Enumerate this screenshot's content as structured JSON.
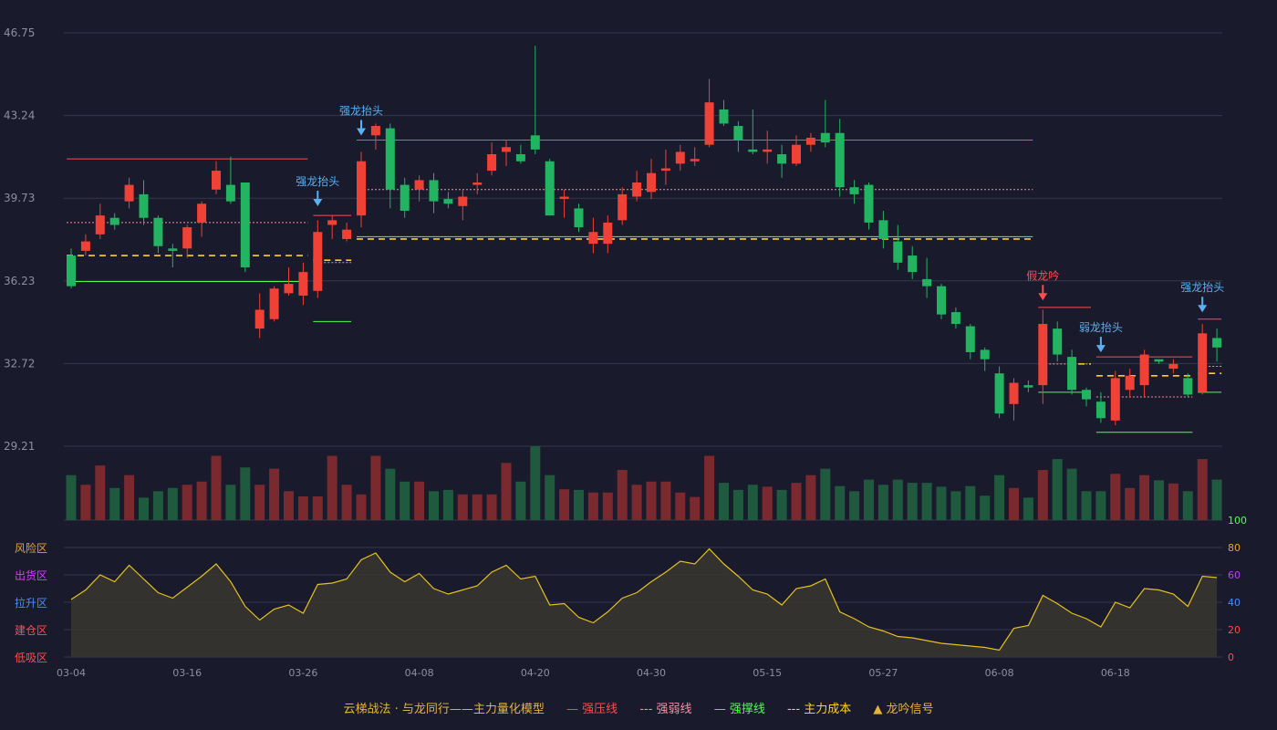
{
  "chart_data": {
    "type": "candlestick",
    "price_ticks": [
      "46.75",
      "43.24",
      "39.73",
      "36.23",
      "32.72",
      "29.21"
    ],
    "ylim": [
      29.21,
      46.75
    ],
    "x_tick_labels": [
      "03-04",
      "03-16",
      "03-26",
      "04-08",
      "04-20",
      "04-30",
      "05-15",
      "05-27",
      "06-08",
      "06-18"
    ],
    "x_tick_index": [
      0,
      8,
      16,
      24,
      32,
      40,
      48,
      56,
      64,
      72
    ],
    "candles": [
      [
        37.3,
        36.0,
        37.6,
        35.9
      ],
      [
        37.5,
        37.9,
        38.2,
        37.3
      ],
      [
        38.2,
        39.0,
        39.5,
        38.0
      ],
      [
        38.9,
        38.6,
        39.1,
        38.4
      ],
      [
        39.6,
        40.3,
        40.6,
        39.3
      ],
      [
        39.9,
        38.9,
        40.5,
        38.6
      ],
      [
        38.9,
        37.7,
        39.0,
        37.4
      ],
      [
        37.6,
        37.5,
        37.8,
        36.8
      ],
      [
        37.6,
        38.5,
        38.6,
        37.2
      ],
      [
        38.7,
        39.5,
        39.6,
        38.1
      ],
      [
        40.1,
        40.9,
        41.3,
        39.9
      ],
      [
        40.3,
        39.6,
        41.5,
        39.5
      ],
      [
        40.4,
        36.8,
        40.3,
        36.6
      ],
      [
        34.2,
        35.0,
        35.7,
        33.8
      ],
      [
        34.6,
        35.9,
        36.0,
        34.5
      ],
      [
        35.7,
        36.1,
        36.8,
        35.6
      ],
      [
        35.6,
        36.6,
        37.0,
        35.2
      ],
      [
        35.8,
        38.3,
        38.8,
        35.5
      ],
      [
        38.6,
        38.8,
        39.0,
        38.0
      ],
      [
        38.0,
        38.4,
        38.7,
        37.9
      ],
      [
        39.0,
        41.3,
        41.7,
        38.5
      ],
      [
        42.4,
        42.8,
        42.9,
        41.8
      ],
      [
        42.7,
        40.1,
        42.9,
        39.3
      ],
      [
        40.3,
        39.2,
        40.6,
        38.9
      ],
      [
        40.1,
        40.5,
        40.7,
        39.6
      ],
      [
        40.5,
        39.6,
        40.8,
        39.1
      ],
      [
        39.7,
        39.5,
        40.0,
        39.3
      ],
      [
        39.4,
        39.8,
        40.1,
        38.8
      ],
      [
        40.3,
        40.4,
        40.8,
        39.9
      ],
      [
        40.9,
        41.6,
        42.1,
        40.7
      ],
      [
        41.7,
        41.9,
        42.2,
        41.1
      ],
      [
        41.6,
        41.3,
        42.0,
        41.2
      ],
      [
        42.4,
        41.8,
        46.2,
        41.6
      ],
      [
        41.3,
        39.0,
        41.4,
        39.0
      ],
      [
        39.7,
        39.8,
        40.1,
        38.9
      ],
      [
        39.3,
        38.5,
        39.5,
        38.3
      ],
      [
        37.8,
        38.3,
        38.9,
        37.4
      ],
      [
        37.8,
        38.7,
        39.0,
        37.4
      ],
      [
        38.8,
        39.9,
        40.2,
        38.6
      ],
      [
        39.8,
        40.4,
        40.9,
        39.6
      ],
      [
        40.0,
        40.8,
        41.4,
        39.7
      ],
      [
        40.9,
        41.0,
        41.8,
        40.3
      ],
      [
        41.2,
        41.7,
        42.0,
        40.9
      ],
      [
        41.3,
        41.4,
        41.9,
        41.1
      ],
      [
        42.0,
        43.8,
        44.8,
        41.9
      ],
      [
        43.5,
        42.9,
        43.9,
        42.8
      ],
      [
        42.8,
        42.2,
        43.0,
        41.7
      ],
      [
        41.8,
        41.7,
        43.5,
        41.6
      ],
      [
        41.7,
        41.8,
        42.6,
        41.2
      ],
      [
        41.6,
        41.2,
        42.0,
        40.6
      ],
      [
        41.2,
        42.0,
        42.4,
        41.1
      ],
      [
        42.0,
        42.3,
        42.5,
        41.7
      ],
      [
        42.5,
        42.1,
        43.9,
        41.9
      ],
      [
        42.5,
        40.2,
        43.1,
        39.8
      ],
      [
        40.2,
        39.9,
        40.5,
        39.5
      ],
      [
        40.3,
        38.7,
        40.4,
        38.4
      ],
      [
        38.8,
        38.0,
        39.2,
        37.6
      ],
      [
        37.9,
        37.0,
        38.6,
        36.7
      ],
      [
        37.3,
        36.6,
        37.7,
        36.3
      ],
      [
        36.3,
        36.0,
        37.2,
        35.5
      ],
      [
        36.0,
        34.8,
        36.1,
        34.6
      ],
      [
        34.9,
        34.4,
        35.1,
        34.2
      ],
      [
        34.3,
        33.2,
        34.4,
        32.9
      ],
      [
        33.3,
        32.9,
        33.4,
        32.4
      ],
      [
        32.3,
        30.6,
        32.6,
        30.4
      ],
      [
        31.0,
        31.9,
        32.1,
        30.3
      ],
      [
        31.8,
        31.7,
        32.0,
        31.5
      ],
      [
        31.8,
        34.4,
        35.0,
        31.0
      ],
      [
        34.2,
        33.1,
        34.5,
        32.8
      ],
      [
        33.0,
        31.6,
        33.3,
        31.4
      ],
      [
        31.6,
        31.2,
        31.7,
        30.9
      ],
      [
        31.1,
        30.4,
        31.5,
        30.2
      ],
      [
        30.3,
        32.1,
        32.4,
        30.1
      ],
      [
        31.6,
        32.2,
        32.5,
        31.3
      ],
      [
        31.8,
        33.1,
        33.3,
        31.3
      ],
      [
        32.9,
        32.8,
        32.9,
        32.7
      ],
      [
        32.5,
        32.7,
        32.9,
        32.3
      ],
      [
        32.1,
        31.4,
        32.3,
        31.3
      ],
      [
        31.5,
        34.0,
        34.4,
        31.4
      ],
      [
        33.8,
        33.4,
        34.2,
        32.8
      ]
    ],
    "volume": [
      0.7,
      0.55,
      0.85,
      0.5,
      0.7,
      0.35,
      0.45,
      0.5,
      0.55,
      0.6,
      1.0,
      0.55,
      0.82,
      0.55,
      0.8,
      0.45,
      0.37,
      0.37,
      1.0,
      0.55,
      0.4,
      1.0,
      0.8,
      0.6,
      0.6,
      0.45,
      0.47,
      0.4,
      0.4,
      0.4,
      0.89,
      0.6,
      1.15,
      0.7,
      0.48,
      0.47,
      0.43,
      0.43,
      0.78,
      0.55,
      0.6,
      0.6,
      0.43,
      0.36,
      1.0,
      0.58,
      0.47,
      0.55,
      0.52,
      0.47,
      0.58,
      0.7,
      0.8,
      0.53,
      0.45,
      0.63,
      0.55,
      0.63,
      0.58,
      0.58,
      0.52,
      0.45,
      0.53,
      0.38,
      0.7,
      0.5,
      0.35,
      0.78,
      0.95,
      0.8,
      0.45,
      0.45,
      0.72,
      0.5,
      0.7,
      0.62,
      0.57,
      0.45,
      0.95,
      0.63
    ],
    "oscillator": [
      42,
      49,
      60,
      55,
      67,
      57,
      47,
      43,
      51,
      59,
      68,
      55,
      37,
      27,
      35,
      38,
      32,
      53,
      54,
      57,
      71,
      76,
      62,
      55,
      61,
      50,
      46,
      49,
      52,
      62,
      67,
      57,
      59,
      38,
      39,
      29,
      25,
      33,
      43,
      47,
      55,
      62,
      70,
      68,
      79,
      68,
      59,
      49,
      46,
      38,
      50,
      52,
      57,
      33,
      28,
      22,
      19,
      15,
      14,
      12,
      10,
      9,
      8,
      7,
      5,
      21,
      23,
      45,
      39,
      32,
      28,
      22,
      40,
      36,
      50,
      49,
      46,
      37,
      59,
      58
    ],
    "osc_axis_labels": [
      "100",
      "80",
      "60",
      "40",
      "20",
      "0"
    ],
    "osc_zone_labels": [
      "风险区",
      "出货区",
      "拉升区",
      "建仓区",
      "低吸区"
    ],
    "annotations": [
      {
        "text": "强龙抬头",
        "index": 20,
        "price": 42.2,
        "color": "#5ab0f0"
      },
      {
        "text": "强龙抬头",
        "index": 17,
        "price": 39.2,
        "color": "#5ab0f0"
      },
      {
        "text": "假龙吟",
        "index": 67,
        "price": 35.2,
        "color": "#ff4c4c"
      },
      {
        "text": "弱龙抬头",
        "index": 71,
        "price": 33.0,
        "color": "#5ab0f0"
      },
      {
        "text": "强龙抬头",
        "index": 78,
        "price": 34.7,
        "color": "#5ab0f0"
      }
    ],
    "levels": [
      {
        "type": "pressure",
        "from": 0,
        "to": 16,
        "price": 41.4
      },
      {
        "type": "weak",
        "from": 0,
        "to": 16,
        "price": 38.7
      },
      {
        "type": "support",
        "from": 0,
        "to": 16,
        "price": 36.2
      },
      {
        "type": "cost",
        "from": 0,
        "to": 16,
        "price": 37.3
      },
      {
        "type": "pressure",
        "from": 17,
        "to": 19,
        "price": 39.0
      },
      {
        "type": "weak",
        "from": 17,
        "to": 19,
        "price": 37.0
      },
      {
        "type": "support",
        "from": 17,
        "to": 19,
        "price": 34.5
      },
      {
        "type": "cost",
        "from": 17,
        "to": 19,
        "price": 37.1
      },
      {
        "type": "pressure",
        "from": 20,
        "to": 66,
        "price": 42.2
      },
      {
        "type": "weak",
        "from": 20,
        "to": 66,
        "price": 40.1
      },
      {
        "type": "support",
        "from": 20,
        "to": 66,
        "price": 38.1
      },
      {
        "type": "cost",
        "from": 20,
        "to": 66,
        "price": 38.0
      },
      {
        "type": "pressure",
        "from": 67,
        "to": 70,
        "price": 35.1
      },
      {
        "type": "support",
        "from": 67,
        "to": 70,
        "price": 31.5
      },
      {
        "type": "weak",
        "from": 67,
        "to": 70,
        "price": 32.7
      },
      {
        "type": "cost",
        "from": 69,
        "to": 70,
        "price": 32.7
      },
      {
        "type": "pressure",
        "from": 71,
        "to": 77,
        "price": 33.0
      },
      {
        "type": "weak",
        "from": 71,
        "to": 77,
        "price": 31.3
      },
      {
        "type": "support",
        "from": 71,
        "to": 77,
        "price": 29.8
      },
      {
        "type": "cost",
        "from": 71,
        "to": 77,
        "price": 32.2
      },
      {
        "type": "pressure",
        "from": 78,
        "to": 79,
        "price": 34.6
      },
      {
        "type": "weak",
        "from": 78,
        "to": 79,
        "price": 32.6
      },
      {
        "type": "support",
        "from": 78,
        "to": 79,
        "price": 31.5
      },
      {
        "type": "cost",
        "from": 78,
        "to": 79,
        "price": 32.3
      }
    ]
  },
  "colors": {
    "up": "#ef4136",
    "down": "#22b460",
    "vol_up": "#7a2a2e",
    "vol_down": "#1f5a3e",
    "pressure": "#ff4c4c",
    "weak": "#ff8ca0",
    "support": "#4cff4c",
    "cost": "#ffd21e",
    "grid": "#35374a",
    "axis_text": "#8d8f9e"
  },
  "legend": {
    "title": "云梯战法 · 与龙同行——主力量化模型",
    "pressure": "强压线",
    "weak": "强弱线",
    "support": "强撑线",
    "cost": "主力成本",
    "signal": "龙吟信号"
  }
}
